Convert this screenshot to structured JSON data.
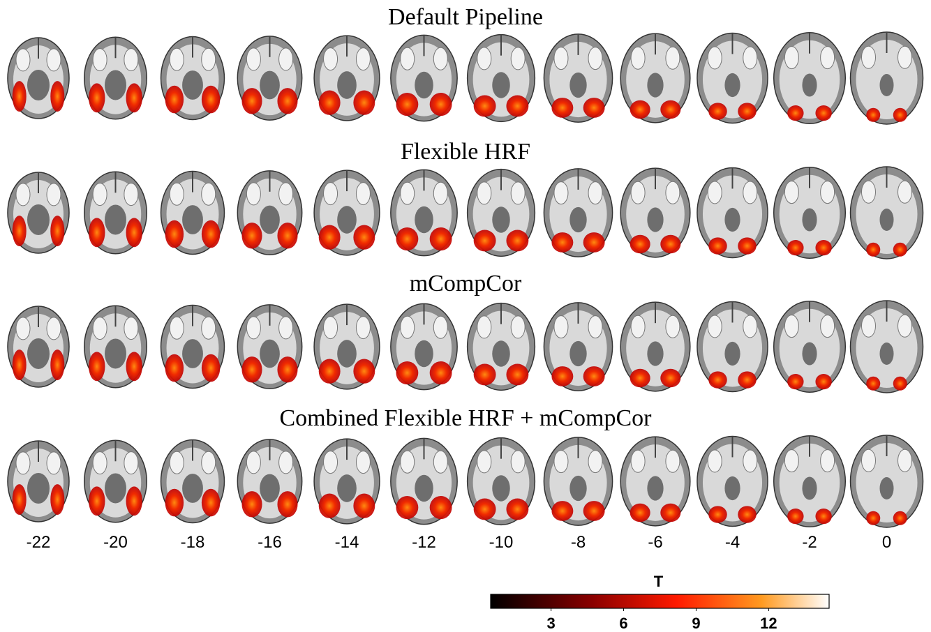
{
  "rows": [
    {
      "title": "Default Pipeline"
    },
    {
      "title": "Flexible HRF"
    },
    {
      "title": "mCompCor"
    },
    {
      "title": "Combined Flexible HRF + mCompCor"
    }
  ],
  "slice_labels": [
    -22,
    -20,
    -18,
    -16,
    -14,
    -12,
    -10,
    -8,
    -6,
    -4,
    -2,
    0
  ],
  "colorbar": {
    "title": "T",
    "range": [
      0.5,
      14.5
    ],
    "ticks": [
      3,
      6,
      9,
      12
    ]
  }
}
